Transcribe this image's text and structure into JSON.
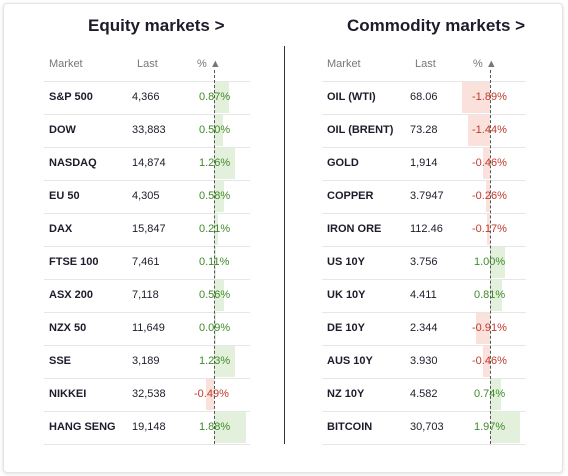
{
  "equity": {
    "title": "Equity markets >",
    "headers": {
      "market": "Market",
      "last": "Last",
      "pct": "% ▲"
    },
    "rows": [
      {
        "market": "S&P 500",
        "last": "4,366",
        "pct": "0.87%",
        "value": 0.87
      },
      {
        "market": "DOW",
        "last": "33,883",
        "pct": "0.50%",
        "value": 0.5
      },
      {
        "market": "NASDAQ",
        "last": "14,874",
        "pct": "1.26%",
        "value": 1.26
      },
      {
        "market": "EU 50",
        "last": "4,305",
        "pct": "0.58%",
        "value": 0.58
      },
      {
        "market": "DAX",
        "last": "15,847",
        "pct": "0.21%",
        "value": 0.21
      },
      {
        "market": "FTSE 100",
        "last": "7,461",
        "pct": "0.11%",
        "value": 0.11
      },
      {
        "market": "ASX 200",
        "last": "7,118",
        "pct": "0.56%",
        "value": 0.56
      },
      {
        "market": "NZX 50",
        "last": "11,649",
        "pct": "0.09%",
        "value": 0.09
      },
      {
        "market": "SSE",
        "last": "3,189",
        "pct": "1.23%",
        "value": 1.23
      },
      {
        "market": "NIKKEI",
        "last": "32,538",
        "pct": "-0.49%",
        "value": -0.49
      },
      {
        "market": "HANG SENG",
        "last": "19,148",
        "pct": "1.88%",
        "value": 1.88
      }
    ]
  },
  "commodity": {
    "title": "Commodity markets >",
    "headers": {
      "market": "Market",
      "last": "Last",
      "pct": "% ▲"
    },
    "rows": [
      {
        "market": "OIL (WTI)",
        "last": "68.06",
        "pct": "-1.89%",
        "value": -1.89
      },
      {
        "market": "OIL (BRENT)",
        "last": "73.28",
        "pct": "-1.44%",
        "value": -1.44
      },
      {
        "market": "GOLD",
        "last": "1,914",
        "pct": "-0.46%",
        "value": -0.46
      },
      {
        "market": "COPPER",
        "last": "3.7947",
        "pct": "-0.26%",
        "value": -0.26
      },
      {
        "market": "IRON ORE",
        "last": "112.46",
        "pct": "-0.17%",
        "value": -0.17
      },
      {
        "market": "US 10Y",
        "last": "3.756",
        "pct": "1.00%",
        "value": 1.0
      },
      {
        "market": "UK 10Y",
        "last": "4.411",
        "pct": "0.81%",
        "value": 0.81
      },
      {
        "market": "DE 10Y",
        "last": "2.344",
        "pct": "-0.91%",
        "value": -0.91
      },
      {
        "market": "AUS 10Y",
        "last": "3.930",
        "pct": "-0.46%",
        "value": -0.46
      },
      {
        "market": "NZ 10Y",
        "last": "4.582",
        "pct": "0.74%",
        "value": 0.74
      },
      {
        "market": "BITCOIN",
        "last": "30,703",
        "pct": "1.97%",
        "value": 1.97
      }
    ]
  },
  "colors": {
    "positive_text": "#3f8a2a",
    "negative_text": "#c0392b",
    "positive_bar": "#e3f1dc",
    "negative_bar": "#fbe1db"
  }
}
